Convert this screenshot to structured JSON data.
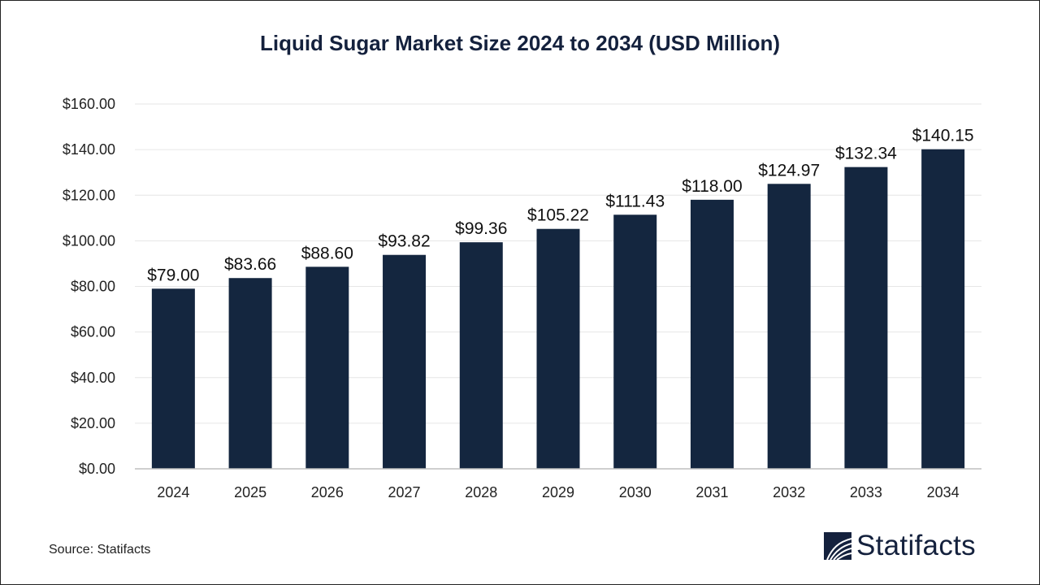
{
  "chart_data": {
    "type": "bar",
    "title": "Liquid Sugar Market Size 2024 to 2034 (USD Million)",
    "categories": [
      "2024",
      "2025",
      "2026",
      "2027",
      "2028",
      "2029",
      "2030",
      "2031",
      "2032",
      "2033",
      "2034"
    ],
    "values": [
      79.0,
      83.66,
      88.6,
      93.82,
      99.36,
      105.22,
      111.43,
      118.0,
      124.97,
      132.34,
      140.15
    ],
    "data_labels": [
      "$79.00",
      "$83.66",
      "$88.60",
      "$93.82",
      "$99.36",
      "$105.22",
      "$111.43",
      "$118.00",
      "$124.97",
      "$132.34",
      "$140.15"
    ],
    "y_ticks": [
      "$0.00",
      "$20.00",
      "$40.00",
      "$60.00",
      "$80.00",
      "$100.00",
      "$120.00",
      "$140.00",
      "$160.00"
    ],
    "ylim": [
      0,
      160
    ],
    "xlabel": "",
    "ylabel": "",
    "grid": true,
    "bar_color": "#14263f"
  },
  "source": "Source: Statifacts",
  "logo": "Statifacts"
}
